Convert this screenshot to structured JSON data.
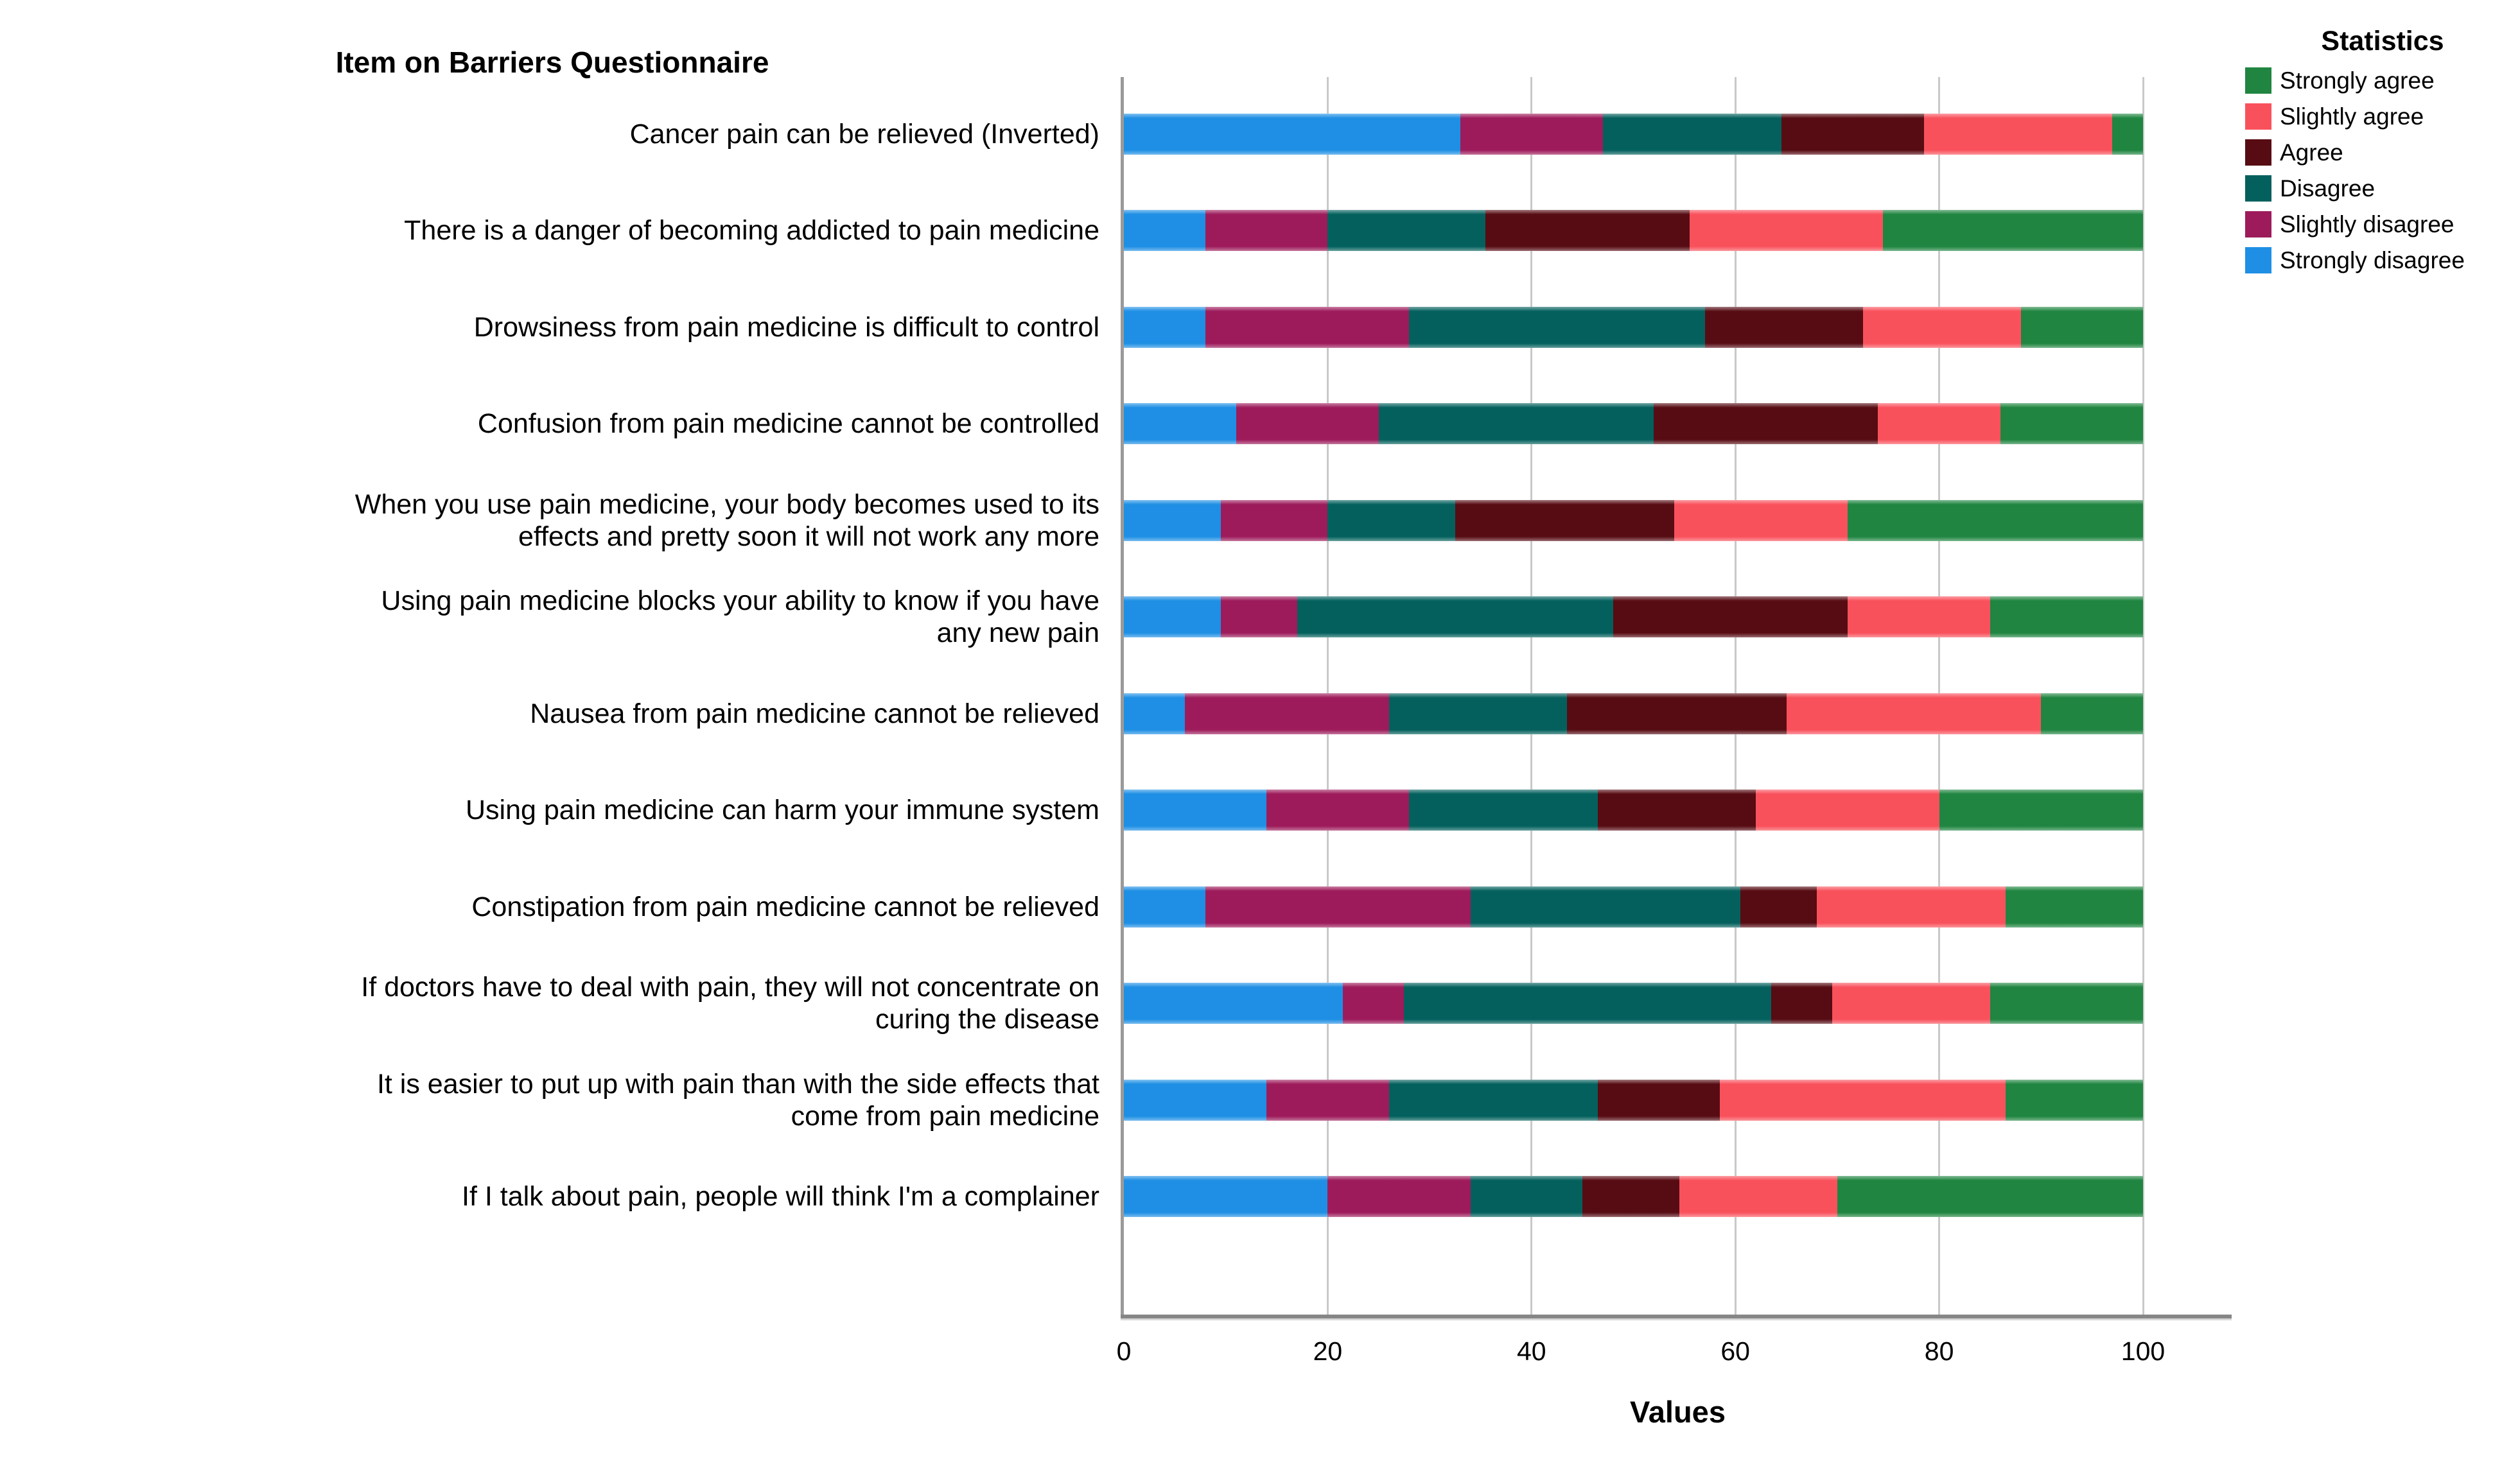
{
  "chart_data": {
    "type": "bar",
    "orientation": "horizontal-stacked",
    "title": "Item on Barriers Questionnaire",
    "xlabel": "Values",
    "legend_title": "Statistics",
    "legend_position": "top-right",
    "grid": true,
    "xlim": [
      0,
      108.7
    ],
    "xticks": [
      0,
      20,
      40,
      60,
      80,
      100
    ],
    "categories": [
      "Cancer pain can be relieved (Inverted)",
      "There is a danger of becoming addicted to pain medicine",
      "Drowsiness from pain medicine is difficult to control",
      "Confusion from pain medicine cannot be controlled",
      "When you use pain medicine, your body becomes used to its\neffects and pretty soon it will not work any more",
      "Using pain medicine blocks your ability to know if you have\nany new pain",
      "Nausea from pain medicine cannot be relieved",
      "Using pain medicine can harm your immune system",
      "Constipation from pain medicine cannot be relieved",
      "If doctors have to deal with pain, they will not concentrate on\ncuring the disease",
      "It is easier to put up with pain than with the side effects that\ncome from pain medicine",
      "If I talk about pain, people will think I'm a complainer"
    ],
    "series": [
      {
        "name": "Strongly disagree",
        "color": "#1E8FE4",
        "values": [
          33,
          8,
          8,
          11,
          9.5,
          9.5,
          6,
          14,
          8,
          21.5,
          14,
          20
        ]
      },
      {
        "name": "Slightly disagree",
        "color": "#9D1B5B",
        "values": [
          14,
          12,
          20,
          14,
          10.5,
          7.5,
          20,
          14,
          26,
          6,
          12,
          14
        ]
      },
      {
        "name": "Disagree",
        "color": "#03605D",
        "values": [
          17.5,
          15.5,
          29,
          27,
          12.5,
          31,
          17.5,
          18.5,
          26.5,
          36,
          20.5,
          11
        ]
      },
      {
        "name": "Agree",
        "color": "#570C13",
        "values": [
          14,
          20,
          15.5,
          22,
          21.5,
          23,
          21.5,
          15.5,
          7.5,
          6,
          12,
          9.5
        ]
      },
      {
        "name": "Slightly agree",
        "color": "#F9515C",
        "values": [
          18.5,
          19,
          15.5,
          12,
          17,
          14,
          25,
          18,
          18.5,
          15.5,
          28,
          15.5
        ]
      },
      {
        "name": "Strongly agree",
        "color": "#1F8540",
        "values": [
          3,
          25.5,
          12,
          14,
          29,
          15,
          10,
          20,
          13.5,
          15,
          13.5,
          30
        ]
      }
    ],
    "legend_order_note": "legend lists series reversed: Strongly agree first, Strongly disagree last",
    "colors": {
      "gridline": "#c9c9c9",
      "y_axis_line": "#9a9a9a",
      "x_axis_line": "#868686",
      "background": "#ffffff"
    }
  }
}
